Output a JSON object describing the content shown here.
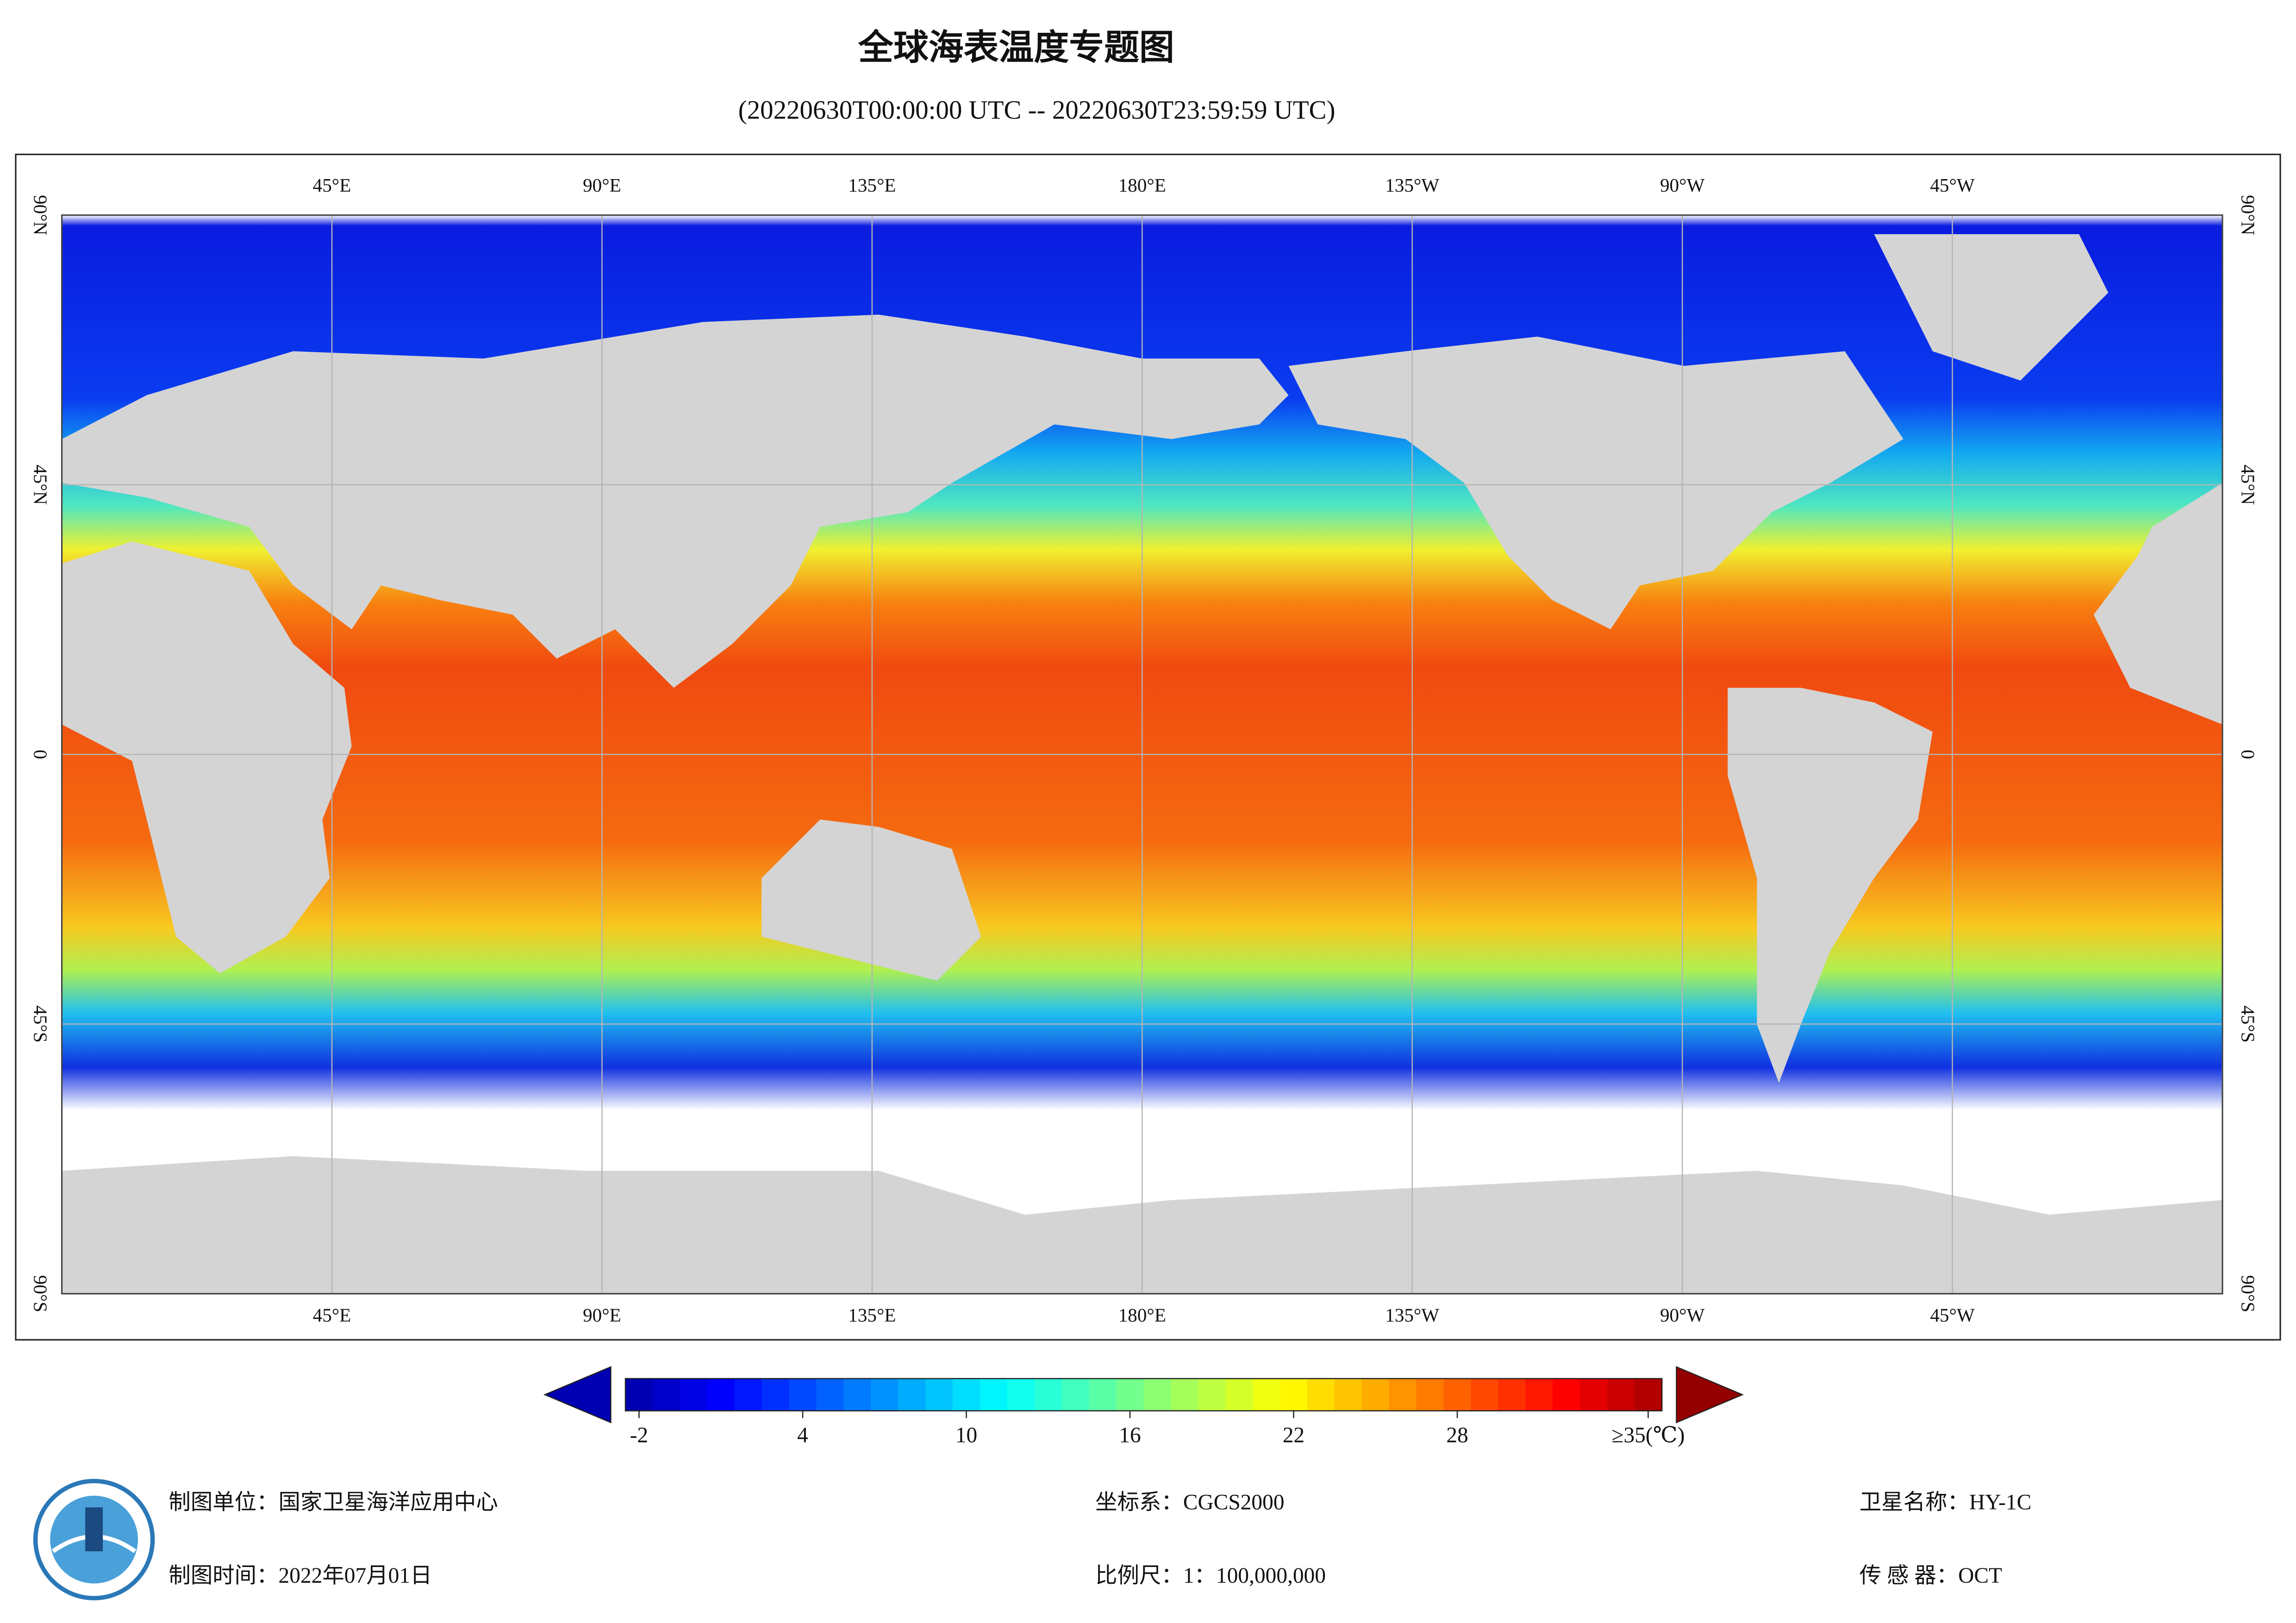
{
  "header": {
    "title": "全球海表温度专题图",
    "subtitle": "(20220630T00:00:00 UTC -- 20220630T23:59:59 UTC)"
  },
  "map": {
    "lon_labels": [
      "45°E",
      "90°E",
      "135°E",
      "180°E",
      "135°W",
      "90°W",
      "45°W"
    ],
    "lat_labels": [
      "90°N",
      "45°N",
      "0",
      "45°S",
      "90°S"
    ]
  },
  "colorbar": {
    "colormap": "jet",
    "lim": [
      -2.5,
      35.5
    ],
    "ticks": [
      -2,
      4,
      10,
      16,
      22,
      28,
      {
        "value": 35,
        "label": "≥35(℃)"
      }
    ]
  },
  "footer": {
    "unit": "制图单位：国家卫星海洋应用中心",
    "time": "制图时间：2022年07月01日",
    "crs": "坐标系：CGCS2000",
    "scale": "比例尺：1：100,000,000",
    "satellite": "卫星名称：HY-1C",
    "sensor": "传 感 器：OCT"
  }
}
